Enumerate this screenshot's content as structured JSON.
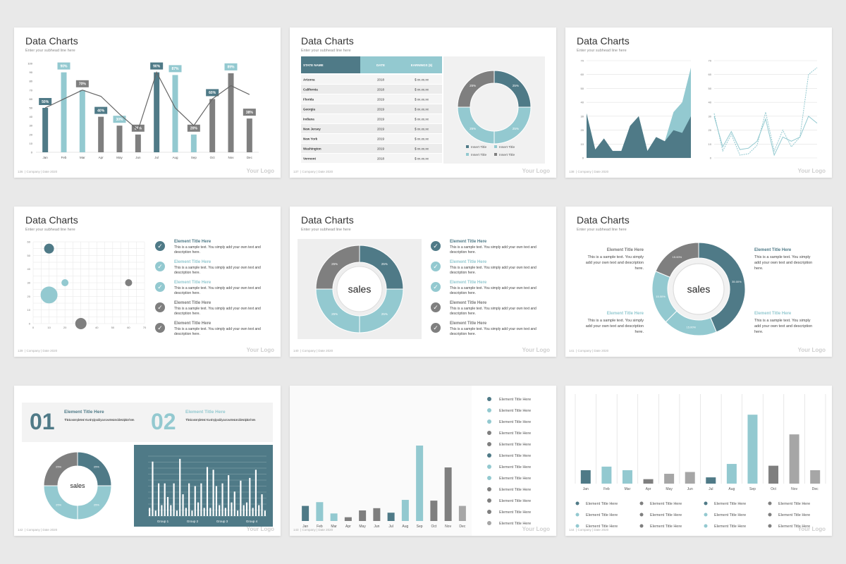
{
  "common": {
    "title": "Data Charts",
    "subtitle": "Enter your subhead line here",
    "logo": "Your Logo",
    "footer_text": "| Company | Date 2020",
    "page_numbers": [
      "136",
      "137",
      "138",
      "139",
      "140",
      "141",
      "142",
      "143",
      "144"
    ]
  },
  "colors": {
    "teal_dark": "#4f7a87",
    "teal_light": "#93c9d0",
    "gray": "#7f7f7f",
    "gray_light": "#a6a6a6"
  },
  "chart_data": [
    {
      "type": "bar",
      "categories": [
        "Jan",
        "Feb",
        "Mar",
        "Apr",
        "May",
        "Jun",
        "Jul",
        "Aug",
        "Sep",
        "Oct",
        "Nov",
        "Dec"
      ],
      "values": [
        50,
        90,
        70,
        40,
        30,
        20,
        90,
        87,
        20,
        60,
        89,
        38
      ],
      "data_labels": [
        "50%",
        "90%",
        "70%",
        "40%",
        "30%",
        "20%",
        "90%",
        "87%",
        "20%",
        "60%",
        "89%",
        "38%"
      ],
      "line_values": [
        50,
        60,
        70,
        63,
        43,
        25,
        90,
        50,
        30,
        60,
        75,
        65
      ],
      "yticks": [
        "0",
        "10",
        "20",
        "30",
        "40",
        "50",
        "60",
        "70",
        "80",
        "90",
        "100"
      ],
      "ylim": [
        0,
        100
      ]
    },
    {
      "type": "table",
      "columns": [
        "STATE NAME",
        "DATE",
        "EARNINGS ($)"
      ],
      "rows": [
        [
          "Arizona",
          "2018",
          "$ xx.xx.xx"
        ],
        [
          "California",
          "2018",
          "$ xx.xx.xx"
        ],
        [
          "Florida",
          "2019",
          "$ xx.xx.xx"
        ],
        [
          "Georgia",
          "2019",
          "$ xx.xx.xx"
        ],
        [
          "Indiana",
          "2019",
          "$ xx.xx.xx"
        ],
        [
          "New Jersey",
          "2019",
          "$ xx.xx.xx"
        ],
        [
          "New York",
          "2019",
          "$ xx.xx.xx"
        ],
        [
          "Washington",
          "2019",
          "$ xx.xx.xx"
        ],
        [
          "Vermont",
          "2018",
          "$ xx.xx.xx"
        ]
      ],
      "donut": {
        "values": [
          25,
          25,
          25,
          25
        ],
        "labels": [
          "25%",
          "25%",
          "25%",
          "25%"
        ]
      },
      "legend": [
        "Insert Title",
        "Insert Title",
        "Insert Title",
        "Insert Title"
      ]
    },
    {
      "type": "area",
      "yticks": [
        "0",
        "10",
        "20",
        "30",
        "40",
        "50",
        "60",
        "70"
      ],
      "ylim": [
        0,
        70
      ],
      "series_a": [
        32,
        6,
        14,
        5,
        5,
        23,
        30,
        5,
        15,
        12,
        33,
        40,
        65
      ],
      "series_b": [
        32,
        6,
        14,
        5,
        5,
        23,
        30,
        5,
        15,
        12,
        20,
        18,
        30
      ]
    },
    {
      "type": "line",
      "yticks": [
        "0",
        "10",
        "20",
        "30",
        "40",
        "50",
        "60",
        "70"
      ],
      "ylim": [
        0,
        70
      ],
      "series_a": [
        32,
        5,
        17,
        2,
        3,
        9,
        33,
        5,
        20,
        8,
        15,
        60,
        65
      ],
      "series_b": [
        30,
        8,
        19,
        6,
        7,
        12,
        28,
        2,
        15,
        12,
        15,
        30,
        25
      ]
    },
    {
      "type": "scatter",
      "xticks": [
        "0",
        "10",
        "20",
        "30",
        "40",
        "50",
        "60",
        "70"
      ],
      "yticks": [
        "0",
        "10",
        "20",
        "30",
        "40",
        "50",
        "60"
      ],
      "points": [
        {
          "x": 10,
          "y": 55,
          "r": 7,
          "c": "teal_dark"
        },
        {
          "x": 20,
          "y": 30,
          "r": 5,
          "c": "teal_light"
        },
        {
          "x": 10,
          "y": 21,
          "r": 12,
          "c": "teal_light"
        },
        {
          "x": 30,
          "y": 0,
          "r": 8,
          "c": "gray"
        },
        {
          "x": 60,
          "y": 30,
          "r": 5,
          "c": "gray"
        }
      ]
    },
    {
      "type": "pie",
      "center_label": "sales",
      "labels": [
        "25%",
        "25%",
        "25%",
        "25%"
      ],
      "values": [
        25,
        25,
        25,
        25
      ]
    },
    {
      "type": "pie",
      "center_label": "sales",
      "labels": [
        "35.00%",
        "15.00%",
        "15.00%",
        "15.00%"
      ],
      "values": [
        35,
        15,
        15,
        15
      ]
    },
    {
      "type": "pie",
      "center_label": "sales",
      "labels": [
        "25%",
        "25%",
        "25%",
        "25%"
      ],
      "values": [
        25,
        25,
        25,
        25
      ]
    },
    {
      "type": "bar",
      "groups": [
        "Group 1",
        "Group 2",
        "Group 3",
        "Group 4"
      ],
      "values": [
        3,
        20,
        2,
        12,
        4,
        12,
        7,
        4,
        12,
        2,
        21,
        8,
        3,
        12,
        2,
        11,
        5,
        12,
        3,
        18,
        3,
        17,
        11,
        4,
        12,
        3,
        15,
        5,
        9,
        2,
        13,
        4,
        5,
        14,
        3,
        17,
        4,
        8,
        2
      ]
    },
    {
      "type": "bar",
      "categories": [
        "Jan",
        "Feb",
        "Mar",
        "Apr",
        "May",
        "Jun",
        "Jul",
        "Aug",
        "Sep",
        "Oct",
        "Nov",
        "Dec"
      ],
      "values": [
        20,
        25,
        10,
        5,
        14,
        17,
        11,
        28,
        100,
        27,
        71,
        20
      ],
      "colors": [
        "teal_dark",
        "teal_light",
        "teal_light",
        "gray",
        "gray",
        "gray",
        "teal_dark",
        "teal_light",
        "teal_light",
        "gray",
        "gray",
        "gray_light"
      ]
    },
    {
      "type": "bar",
      "categories": [
        "Jan",
        "Feb",
        "Mar",
        "Apr",
        "May",
        "Jun",
        "Jul",
        "Aug",
        "Sep",
        "Oct",
        "Nov",
        "Dec"
      ],
      "values": [
        15,
        19,
        15,
        5,
        11,
        13,
        7,
        22,
        77,
        20,
        55,
        15
      ],
      "colors": [
        "teal_dark",
        "teal_light",
        "teal_light",
        "gray",
        "gray_light",
        "gray_light",
        "teal_dark",
        "teal_light",
        "teal_light",
        "gray",
        "gray_light",
        "gray_light"
      ]
    }
  ],
  "element_list": [
    {
      "title": "Element Title Here",
      "body": "This is a sample text. You simply add your own text and description here.",
      "color": "teal_dark"
    },
    {
      "title": "Element Title Here",
      "body": "This is a sample text. You simply add your own text and description here.",
      "color": "teal_light"
    },
    {
      "title": "Element Title Here",
      "body": "This is a sample text. You simply add your own text and description here.",
      "color": "teal_light"
    },
    {
      "title": "Element Title Here",
      "body": "This is a sample text. You simply add your own text and description here.",
      "color": "gray"
    },
    {
      "title": "Element Title Here",
      "body": "This is a sample text. You simply add your own text and description here.",
      "color": "gray"
    }
  ],
  "slide6_labels": [
    {
      "title": "Element Title Here",
      "body": "This is a sample text. You simply add your own text and description here."
    },
    {
      "title": "Element Title Here",
      "body": "This is a sample text. You simply add your own text and description here."
    },
    {
      "title": "Element Title Here",
      "body": "This is a sample text. You simply add your own text and description here."
    },
    {
      "title": "Element Title Here",
      "body": "This is a sample text. You simply add your own text and description here."
    }
  ],
  "slide7": {
    "num1": "01",
    "num2": "02",
    "item_title": "Element Title Here",
    "item_body": "This is a sample text. You simply add your own text and description here."
  },
  "slide8_legend": [
    "Element Title Here",
    "Element Title Here",
    "Element Title Here",
    "Element Title Here",
    "Element Title Here",
    "Element Title Here",
    "Element Title Here",
    "Element Title Here",
    "Element Title Here",
    "Element Title Here",
    "Element Title Here",
    "Element Title Here"
  ],
  "slide9_legend": [
    "Element Title Here",
    "Element Title Here",
    "Element Title Here",
    "Element Title Here",
    "Element Title Here",
    "Element Title Here",
    "Element Title Here",
    "Element Title Here",
    "Element Title Here",
    "Element Title Here",
    "Element Title Here",
    "Element Title Here"
  ]
}
